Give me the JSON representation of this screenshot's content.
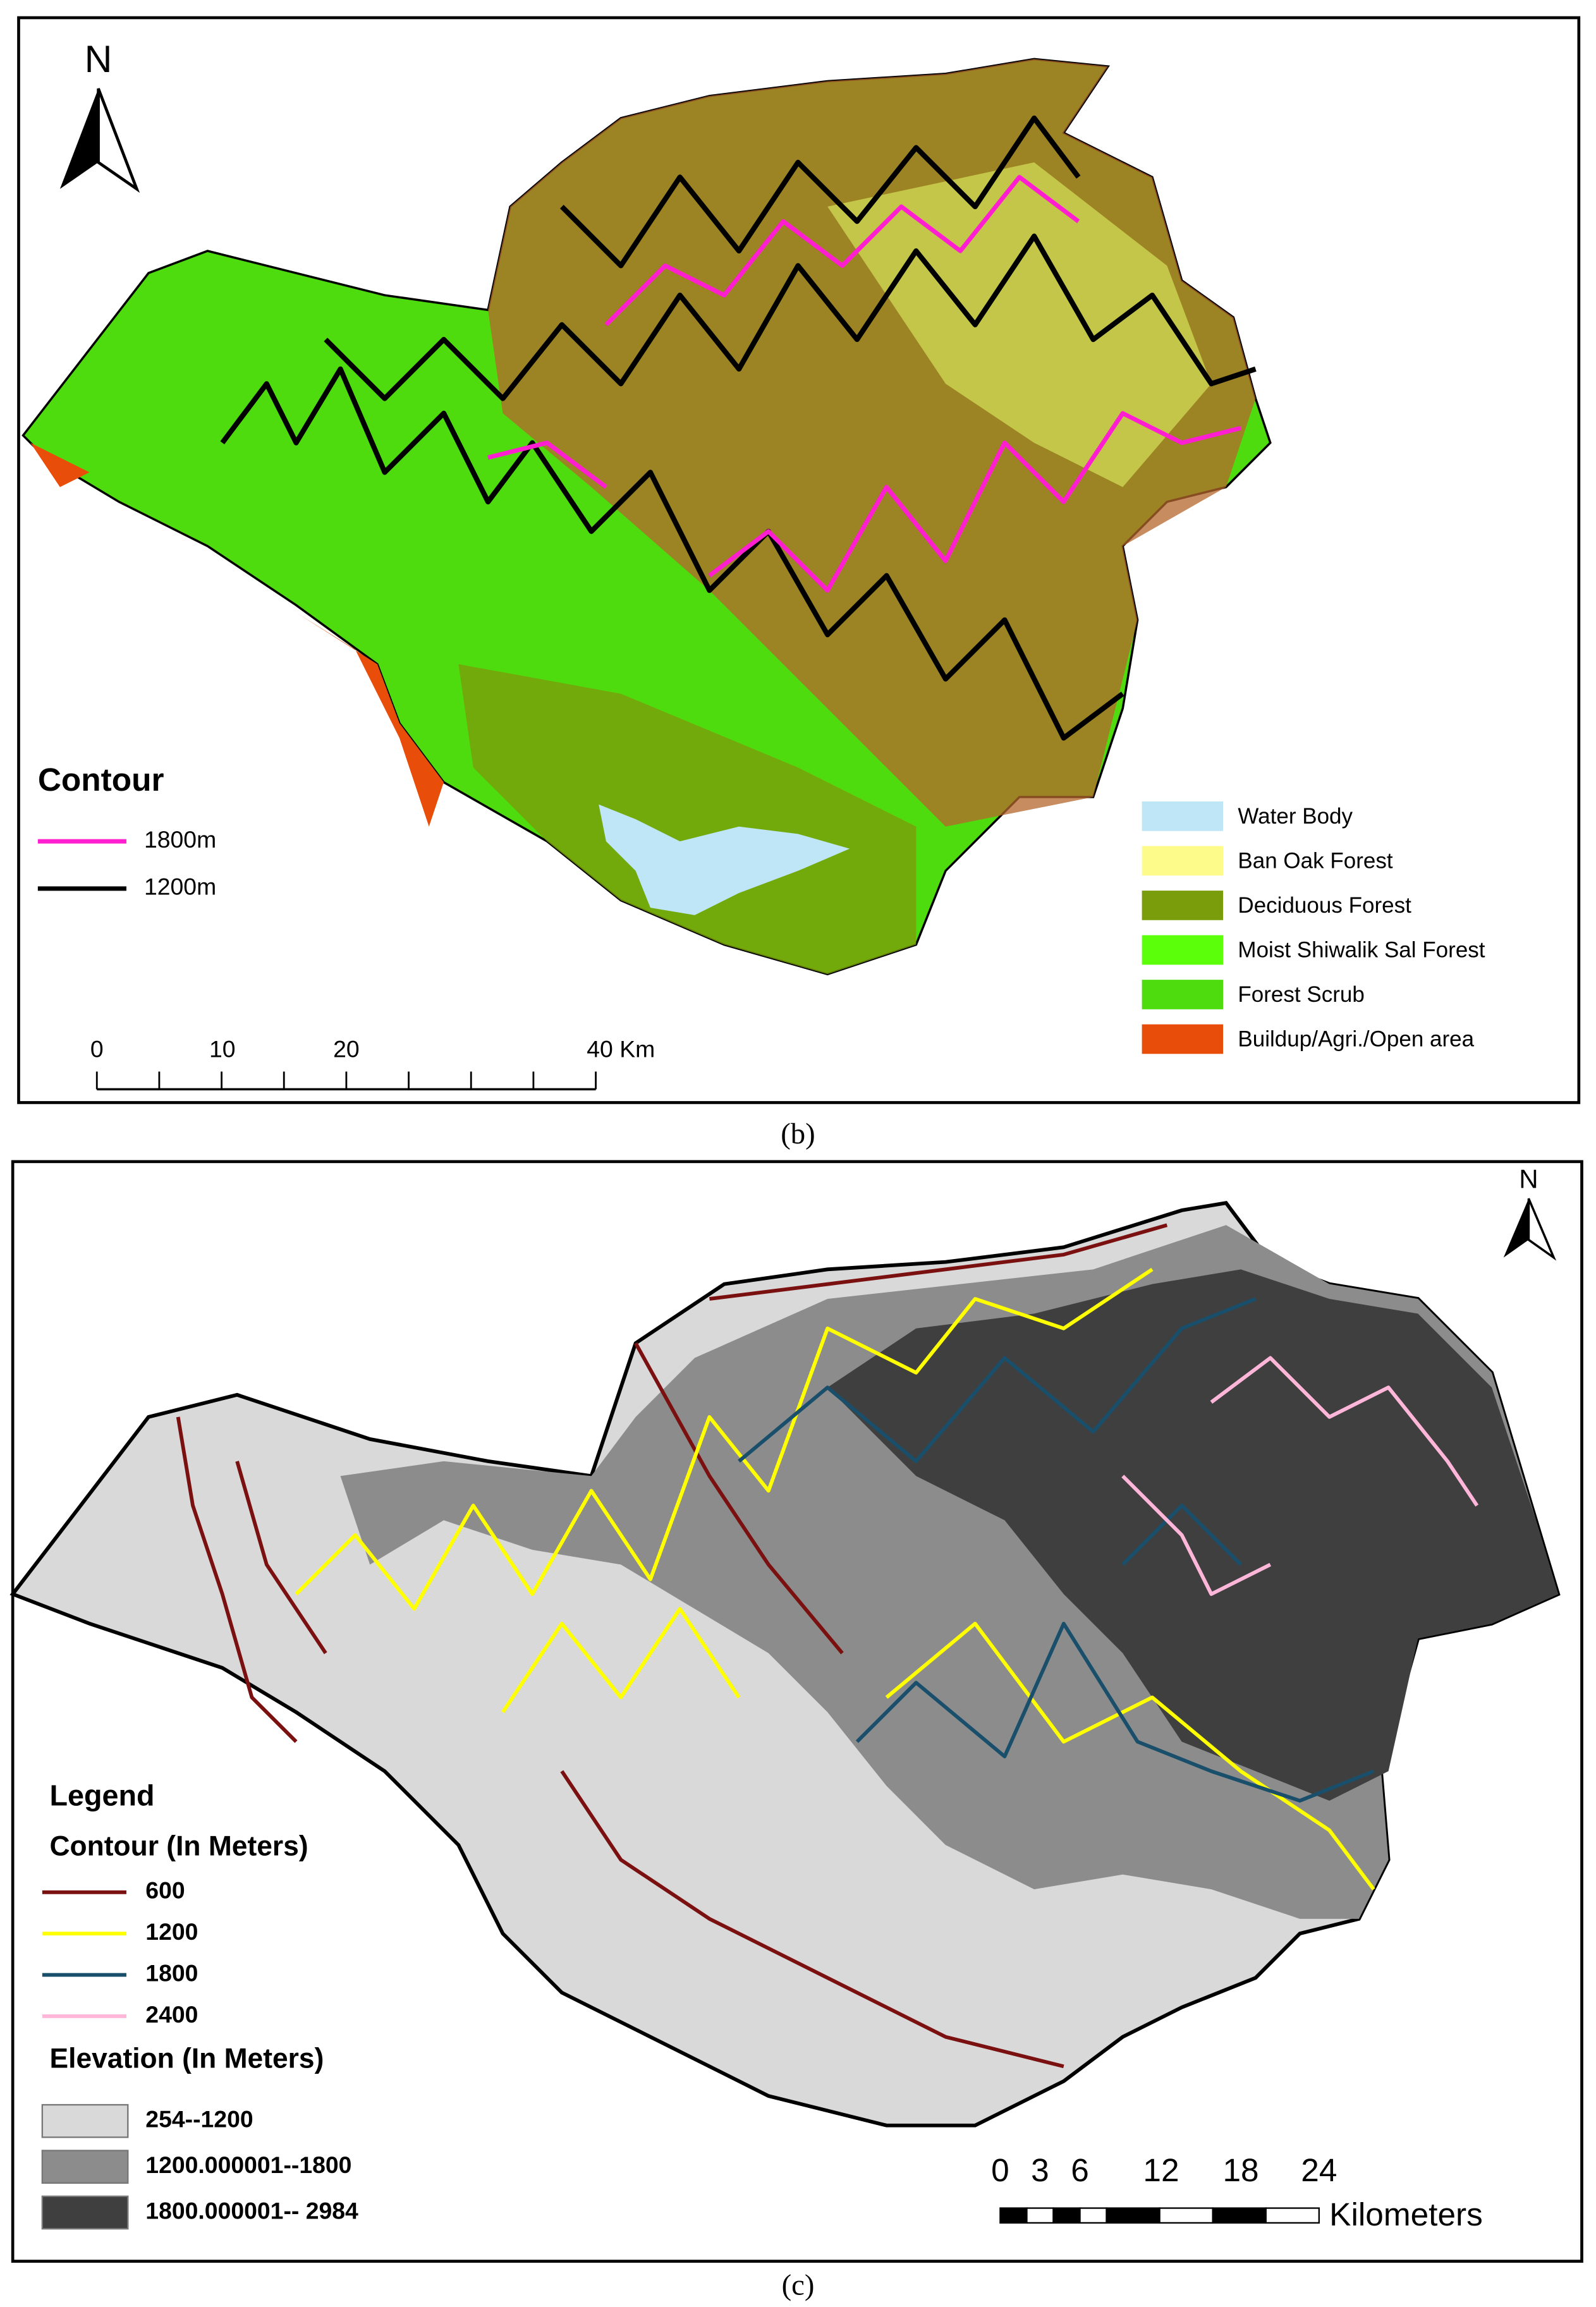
{
  "panel_b": {
    "north": "N",
    "contour_legend": {
      "title": "Contour",
      "items": [
        {
          "label": "1800m",
          "color": "#ff1fd0"
        },
        {
          "label": "1200m",
          "color": "#000000"
        }
      ]
    },
    "landcover_legend": [
      {
        "label": "Water Body",
        "color": "#bfe6f7"
      },
      {
        "label": "Ban Oak Forest",
        "color": "#fdfb8a"
      },
      {
        "label": "Deciduous Forest",
        "color": "#7a9e0b"
      },
      {
        "label": "Moist Shiwalik Sal Forest",
        "color": "#5cff0a"
      },
      {
        "label": "Forest Scrub",
        "color": "#4fdc0e"
      },
      {
        "label": "Buildup/Agri./Open area",
        "color": "#e84d0a"
      }
    ],
    "scale_bar": {
      "labels": [
        "0",
        "10",
        "20",
        "40 Km"
      ]
    },
    "caption": "(b)"
  },
  "panel_c": {
    "north": "N",
    "legend_title": "Legend",
    "contour_title": "Contour (In Meters)",
    "contours": [
      {
        "label": "600",
        "color": "#7b1010"
      },
      {
        "label": "1200",
        "color": "#ffff00"
      },
      {
        "label": "1800",
        "color": "#1a4f6b"
      },
      {
        "label": "2400",
        "color": "#ffb6d9"
      }
    ],
    "elevation_title": "Elevation (In Meters)",
    "elevation": [
      {
        "label": "254--1200",
        "color": "#d9d9d9"
      },
      {
        "label": "1200.000001--1800",
        "color": "#8c8c8c"
      },
      {
        "label": "1800.000001-- 2984",
        "color": "#3f3f3f"
      }
    ],
    "scale_bar": {
      "labels": [
        "0",
        "3",
        "6",
        "12",
        "18",
        "24"
      ],
      "unit": "Kilometers"
    },
    "caption": "(c)"
  }
}
